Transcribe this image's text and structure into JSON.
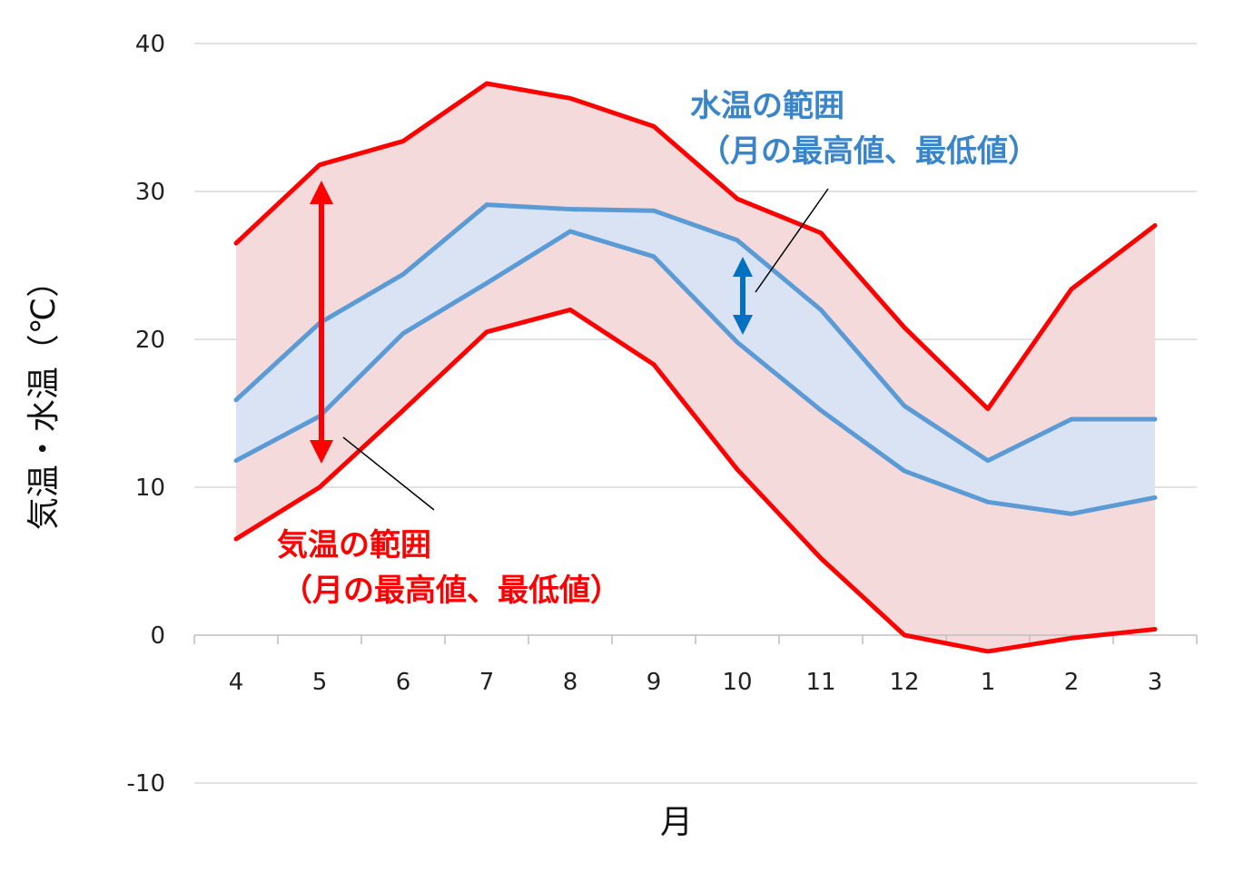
{
  "chart_data": {
    "type": "area",
    "xlabel": "月",
    "ylabel": "気温・水温（℃）",
    "ylim": [
      -10,
      40
    ],
    "yticks": [
      -10,
      0,
      10,
      20,
      30,
      40
    ],
    "grid": true,
    "categories": [
      "4",
      "5",
      "6",
      "7",
      "8",
      "9",
      "10",
      "11",
      "12",
      "1",
      "2",
      "3"
    ],
    "series": [
      {
        "name": "気温 最高値",
        "values": [
          26.5,
          31.8,
          33.4,
          37.3,
          36.3,
          34.4,
          29.5,
          27.2,
          20.8,
          15.3,
          23.4,
          27.7
        ],
        "color": "#ff0000"
      },
      {
        "name": "気温 最低値",
        "values": [
          6.5,
          10.0,
          15.2,
          20.5,
          22.0,
          18.3,
          11.2,
          5.2,
          0.0,
          -1.1,
          -0.2,
          0.4
        ],
        "color": "#ff0000"
      },
      {
        "name": "水温 最高値",
        "values": [
          15.9,
          21.1,
          24.4,
          29.1,
          28.8,
          28.7,
          26.7,
          22.0,
          15.5,
          11.8,
          14.6,
          14.6
        ],
        "color": "#5b9bd5"
      },
      {
        "name": "水温 最低値",
        "values": [
          11.8,
          14.8,
          20.4,
          23.8,
          27.3,
          25.6,
          19.8,
          15.2,
          11.1,
          9.0,
          8.2,
          9.3
        ],
        "color": "#5b9bd5"
      }
    ],
    "fills": {
      "air_range": "#f4dada",
      "water_range": "#d9e3f3"
    },
    "annotations": {
      "air": {
        "line1": "気温の範囲",
        "line2": "（月の最高値、最低値）",
        "color": "#ff0000"
      },
      "water": {
        "line1": "水温の範囲",
        "line2": "（月の最高値、最低値）",
        "color": "#3a85c9"
      }
    }
  }
}
